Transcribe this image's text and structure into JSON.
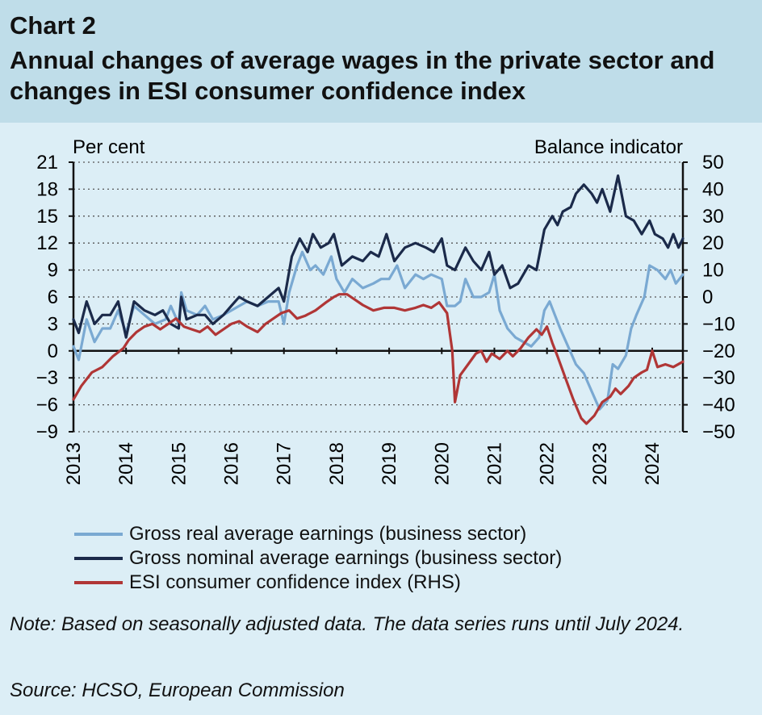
{
  "header": {
    "chart_number": "Chart 2",
    "title": "Annual changes of average wages in the private sector and changes in ESI consumer confidence index"
  },
  "chart_data": {
    "type": "line",
    "left_axis": {
      "label": "Per cent",
      "min": -9,
      "max": 21,
      "step": 3,
      "ticks": [
        "21",
        "18",
        "15",
        "12",
        "9",
        "6",
        "3",
        "0",
        "−3",
        "−6",
        "−9"
      ]
    },
    "right_axis": {
      "label": "Balance indicator",
      "min": -50,
      "max": 50,
      "step": 10,
      "ticks": [
        "50",
        "40",
        "30",
        "20",
        "10",
        "0",
        "−10",
        "−20",
        "−30",
        "−40",
        "−50"
      ]
    },
    "x_axis": {
      "start": 2013,
      "end": 2024.583,
      "tick_labels": [
        "2013",
        "2014",
        "2015",
        "2016",
        "2017",
        "2018",
        "2019",
        "2020",
        "2021",
        "2022",
        "2023",
        "2024"
      ]
    },
    "grid": true,
    "legend_position": "bottom",
    "series": [
      {
        "name": "Gross real average earnings (business sector)",
        "axis": "left",
        "color": "#7aa9d2",
        "points": [
          [
            2013.0,
            0.5
          ],
          [
            2013.1,
            -1.0
          ],
          [
            2013.25,
            3.5
          ],
          [
            2013.4,
            1.0
          ],
          [
            2013.55,
            2.5
          ],
          [
            2013.7,
            2.5
          ],
          [
            2013.85,
            4.5
          ],
          [
            2014.0,
            2.0
          ],
          [
            2014.15,
            5.0
          ],
          [
            2014.35,
            4.0
          ],
          [
            2014.55,
            3.0
          ],
          [
            2014.75,
            3.5
          ],
          [
            2014.85,
            5.0
          ],
          [
            2015.0,
            3.0
          ],
          [
            2015.05,
            6.5
          ],
          [
            2015.15,
            4.5
          ],
          [
            2015.35,
            4.0
          ],
          [
            2015.5,
            5.0
          ],
          [
            2015.65,
            3.5
          ],
          [
            2015.85,
            4.0
          ],
          [
            2016.0,
            4.5
          ],
          [
            2016.15,
            5.0
          ],
          [
            2016.3,
            5.5
          ],
          [
            2016.5,
            5.0
          ],
          [
            2016.7,
            5.5
          ],
          [
            2016.9,
            5.5
          ],
          [
            2017.0,
            3.0
          ],
          [
            2017.1,
            6.5
          ],
          [
            2017.25,
            9.5
          ],
          [
            2017.35,
            11.0
          ],
          [
            2017.5,
            9.0
          ],
          [
            2017.6,
            9.5
          ],
          [
            2017.75,
            8.5
          ],
          [
            2017.9,
            10.5
          ],
          [
            2018.0,
            8.0
          ],
          [
            2018.15,
            6.5
          ],
          [
            2018.3,
            8.0
          ],
          [
            2018.5,
            7.0
          ],
          [
            2018.7,
            7.5
          ],
          [
            2018.85,
            8.0
          ],
          [
            2019.0,
            8.0
          ],
          [
            2019.15,
            9.5
          ],
          [
            2019.3,
            7.0
          ],
          [
            2019.5,
            8.5
          ],
          [
            2019.65,
            8.0
          ],
          [
            2019.8,
            8.5
          ],
          [
            2020.0,
            8.0
          ],
          [
            2020.1,
            5.0
          ],
          [
            2020.25,
            5.0
          ],
          [
            2020.35,
            5.5
          ],
          [
            2020.45,
            8.0
          ],
          [
            2020.6,
            6.0
          ],
          [
            2020.75,
            6.0
          ],
          [
            2020.9,
            6.5
          ],
          [
            2021.0,
            8.5
          ],
          [
            2021.1,
            4.5
          ],
          [
            2021.25,
            2.5
          ],
          [
            2021.4,
            1.5
          ],
          [
            2021.55,
            1.0
          ],
          [
            2021.7,
            0.5
          ],
          [
            2021.85,
            1.5
          ],
          [
            2021.95,
            4.5
          ],
          [
            2022.05,
            5.5
          ],
          [
            2022.15,
            4.0
          ],
          [
            2022.25,
            2.5
          ],
          [
            2022.4,
            0.5
          ],
          [
            2022.55,
            -1.5
          ],
          [
            2022.7,
            -2.5
          ],
          [
            2022.85,
            -4.5
          ],
          [
            2023.0,
            -6.5
          ],
          [
            2023.15,
            -5.5
          ],
          [
            2023.25,
            -1.5
          ],
          [
            2023.35,
            -2.0
          ],
          [
            2023.5,
            -0.5
          ],
          [
            2023.6,
            2.5
          ],
          [
            2023.7,
            4.0
          ],
          [
            2023.85,
            6.0
          ],
          [
            2023.95,
            9.5
          ],
          [
            2024.1,
            9.0
          ],
          [
            2024.25,
            8.0
          ],
          [
            2024.35,
            9.0
          ],
          [
            2024.45,
            7.5
          ],
          [
            2024.583,
            8.5
          ]
        ]
      },
      {
        "name": "Gross nominal average earnings (business sector)",
        "axis": "left",
        "color": "#1b2a4a",
        "points": [
          [
            2013.0,
            3.5
          ],
          [
            2013.1,
            2.0
          ],
          [
            2013.25,
            5.5
          ],
          [
            2013.4,
            3.0
          ],
          [
            2013.55,
            4.0
          ],
          [
            2013.7,
            4.0
          ],
          [
            2013.85,
            5.5
          ],
          [
            2014.0,
            1.5
          ],
          [
            2014.15,
            5.5
          ],
          [
            2014.35,
            4.5
          ],
          [
            2014.55,
            4.0
          ],
          [
            2014.7,
            4.5
          ],
          [
            2014.85,
            3.0
          ],
          [
            2015.0,
            2.5
          ],
          [
            2015.05,
            6.0
          ],
          [
            2015.15,
            3.5
          ],
          [
            2015.35,
            4.0
          ],
          [
            2015.5,
            4.0
          ],
          [
            2015.65,
            3.0
          ],
          [
            2015.85,
            4.0
          ],
          [
            2016.0,
            5.0
          ],
          [
            2016.15,
            6.0
          ],
          [
            2016.3,
            5.5
          ],
          [
            2016.5,
            5.0
          ],
          [
            2016.7,
            6.0
          ],
          [
            2016.9,
            7.0
          ],
          [
            2017.0,
            5.5
          ],
          [
            2017.15,
            10.5
          ],
          [
            2017.3,
            12.5
          ],
          [
            2017.45,
            11.0
          ],
          [
            2017.55,
            13.0
          ],
          [
            2017.7,
            11.5
          ],
          [
            2017.85,
            12.0
          ],
          [
            2017.95,
            13.0
          ],
          [
            2018.1,
            9.5
          ],
          [
            2018.3,
            10.5
          ],
          [
            2018.5,
            10.0
          ],
          [
            2018.65,
            11.0
          ],
          [
            2018.8,
            10.5
          ],
          [
            2018.95,
            13.0
          ],
          [
            2019.1,
            10.0
          ],
          [
            2019.3,
            11.5
          ],
          [
            2019.5,
            12.0
          ],
          [
            2019.7,
            11.5
          ],
          [
            2019.85,
            11.0
          ],
          [
            2020.0,
            12.5
          ],
          [
            2020.1,
            9.5
          ],
          [
            2020.25,
            9.0
          ],
          [
            2020.45,
            11.5
          ],
          [
            2020.6,
            10.0
          ],
          [
            2020.75,
            9.0
          ],
          [
            2020.9,
            11.0
          ],
          [
            2021.0,
            8.5
          ],
          [
            2021.15,
            9.5
          ],
          [
            2021.3,
            7.0
          ],
          [
            2021.45,
            7.5
          ],
          [
            2021.65,
            9.5
          ],
          [
            2021.8,
            9.0
          ],
          [
            2021.95,
            13.5
          ],
          [
            2022.1,
            15.0
          ],
          [
            2022.2,
            14.0
          ],
          [
            2022.3,
            15.5
          ],
          [
            2022.45,
            16.0
          ],
          [
            2022.55,
            17.5
          ],
          [
            2022.7,
            18.5
          ],
          [
            2022.85,
            17.5
          ],
          [
            2022.95,
            16.5
          ],
          [
            2023.05,
            18.0
          ],
          [
            2023.2,
            15.5
          ],
          [
            2023.35,
            19.5
          ],
          [
            2023.5,
            15.0
          ],
          [
            2023.65,
            14.5
          ],
          [
            2023.8,
            13.0
          ],
          [
            2023.95,
            14.5
          ],
          [
            2024.05,
            13.0
          ],
          [
            2024.2,
            12.5
          ],
          [
            2024.3,
            11.5
          ],
          [
            2024.4,
            13.0
          ],
          [
            2024.5,
            11.5
          ],
          [
            2024.583,
            12.5
          ]
        ]
      },
      {
        "name": "ESI consumer confidence index (RHS)",
        "axis": "right",
        "color": "#b03636",
        "points": [
          [
            2013.0,
            -38
          ],
          [
            2013.15,
            -33
          ],
          [
            2013.35,
            -28
          ],
          [
            2013.55,
            -26
          ],
          [
            2013.75,
            -22
          ],
          [
            2013.95,
            -19
          ],
          [
            2014.05,
            -16
          ],
          [
            2014.2,
            -13
          ],
          [
            2014.35,
            -11
          ],
          [
            2014.5,
            -10
          ],
          [
            2014.65,
            -12
          ],
          [
            2014.8,
            -10
          ],
          [
            2014.95,
            -8
          ],
          [
            2015.1,
            -11
          ],
          [
            2015.25,
            -12
          ],
          [
            2015.4,
            -13
          ],
          [
            2015.55,
            -11
          ],
          [
            2015.7,
            -14
          ],
          [
            2015.85,
            -12
          ],
          [
            2016.0,
            -10
          ],
          [
            2016.15,
            -9
          ],
          [
            2016.3,
            -11
          ],
          [
            2016.5,
            -13
          ],
          [
            2016.65,
            -10
          ],
          [
            2016.8,
            -8
          ],
          [
            2016.95,
            -6
          ],
          [
            2017.1,
            -5
          ],
          [
            2017.25,
            -8
          ],
          [
            2017.4,
            -7
          ],
          [
            2017.6,
            -5
          ],
          [
            2017.8,
            -2
          ],
          [
            2017.95,
            0
          ],
          [
            2018.05,
            1
          ],
          [
            2018.2,
            1
          ],
          [
            2018.35,
            -1
          ],
          [
            2018.5,
            -3
          ],
          [
            2018.7,
            -5
          ],
          [
            2018.9,
            -4
          ],
          [
            2019.1,
            -4
          ],
          [
            2019.3,
            -5
          ],
          [
            2019.5,
            -4
          ],
          [
            2019.65,
            -3
          ],
          [
            2019.8,
            -4
          ],
          [
            2019.95,
            -2
          ],
          [
            2020.1,
            -6
          ],
          [
            2020.2,
            -20
          ],
          [
            2020.25,
            -39
          ],
          [
            2020.35,
            -29
          ],
          [
            2020.5,
            -25
          ],
          [
            2020.65,
            -21
          ],
          [
            2020.75,
            -20
          ],
          [
            2020.85,
            -24
          ],
          [
            2020.95,
            -21
          ],
          [
            2021.1,
            -23
          ],
          [
            2021.25,
            -20
          ],
          [
            2021.35,
            -22
          ],
          [
            2021.5,
            -19
          ],
          [
            2021.65,
            -15
          ],
          [
            2021.8,
            -12
          ],
          [
            2021.9,
            -14
          ],
          [
            2022.0,
            -11
          ],
          [
            2022.1,
            -17
          ],
          [
            2022.2,
            -22
          ],
          [
            2022.35,
            -30
          ],
          [
            2022.5,
            -38
          ],
          [
            2022.65,
            -45
          ],
          [
            2022.75,
            -47
          ],
          [
            2022.9,
            -44
          ],
          [
            2023.05,
            -39
          ],
          [
            2023.2,
            -37
          ],
          [
            2023.3,
            -34
          ],
          [
            2023.4,
            -36
          ],
          [
            2023.55,
            -33
          ],
          [
            2023.65,
            -30
          ],
          [
            2023.8,
            -28
          ],
          [
            2023.9,
            -27
          ],
          [
            2024.0,
            -20
          ],
          [
            2024.1,
            -26
          ],
          [
            2024.25,
            -25
          ],
          [
            2024.4,
            -26
          ],
          [
            2024.583,
            -24
          ]
        ]
      }
    ]
  },
  "footer": {
    "note": "Note: Based on seasonally adjusted data. The data series runs until July 2024.",
    "source": "Source: HCSO, European Commission"
  }
}
